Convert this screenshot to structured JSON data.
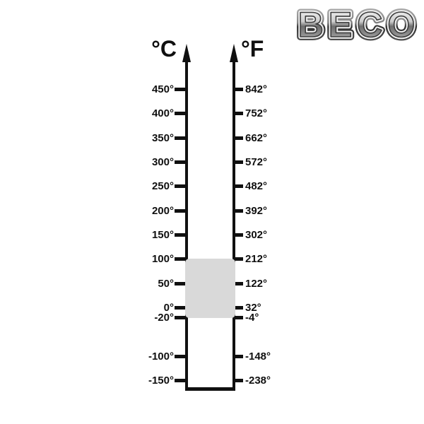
{
  "logo": {
    "text": "BECO"
  },
  "diagram": {
    "celsius_label": "°C",
    "fahrenheit_label": "°F",
    "degree_suffix": "°",
    "celsius_ticks": [
      450,
      400,
      350,
      300,
      250,
      200,
      150,
      100,
      50,
      0,
      -20,
      -100,
      -150
    ],
    "fahrenheit_ticks": [
      842,
      752,
      662,
      572,
      482,
      392,
      302,
      212,
      122,
      32,
      -4,
      -148,
      -238
    ],
    "highlight_range": {
      "top_celsius": 100,
      "bottom_celsius": -20
    },
    "colors": {
      "axis": "#101010",
      "label": "#101010",
      "highlight_box": "#d9d9d9",
      "logo_outline_dark": "#3c3c3c",
      "logo_outline_light": "#f2f2f2"
    }
  }
}
